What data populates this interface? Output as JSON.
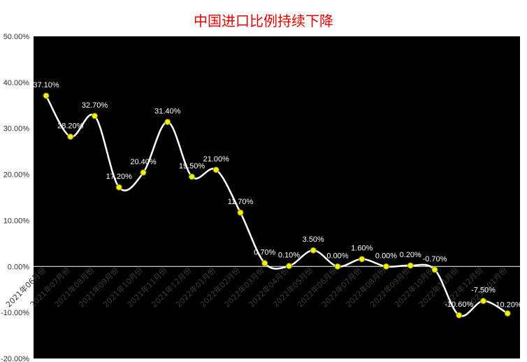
{
  "chart_data": {
    "type": "line",
    "title": "中国进口比例持续下降",
    "xlabel": "",
    "ylabel": "",
    "ylim": [
      -20,
      50
    ],
    "y_ticks": [
      "50.00%",
      "40.00%",
      "30.00%",
      "20.00%",
      "10.00%",
      "0.00%",
      "-10.00%",
      "-20.00%"
    ],
    "categories": [
      "2021年06月份",
      "2021年07月份",
      "2021年08月份",
      "2021年09月份",
      "2021年10月份",
      "2021年11月份",
      "2021年12月份",
      "2022年01月份",
      "2022年02月份",
      "2022年03月份",
      "2022年04月份",
      "2022年05月份",
      "2022年06月份",
      "2022年07月份",
      "2022年08月份",
      "2022年09月份",
      "2022年10月份",
      "2022年11月份",
      "2022年12月份",
      "2023年01月份"
    ],
    "values": [
      37.1,
      28.2,
      32.7,
      17.2,
      20.4,
      31.4,
      19.5,
      21.0,
      11.7,
      0.7,
      0.1,
      3.5,
      0.0,
      1.6,
      0.0,
      0.2,
      -0.7,
      -10.6,
      -7.5,
      -10.2
    ],
    "value_labels": [
      "37.10%",
      "28.20%",
      "32.70%",
      "17.20%",
      "20.40%",
      "31.40%",
      "19.50%",
      "21.00%",
      "11.70%",
      "0.70%",
      "0.10%",
      "3.50%",
      "0.00%",
      "1.60%",
      "0.00%",
      "0.20%",
      "-0.70%",
      "-10.60%",
      "-7.50%",
      "-10.20%"
    ],
    "grid": false,
    "legend": "none",
    "colors": {
      "plot_background": "#000000",
      "line": "#ffffff",
      "marker_fill": "#f2f200",
      "marker_stroke": "#8a8a00",
      "title": "#e60000",
      "zero_line": "#ffffff"
    }
  }
}
